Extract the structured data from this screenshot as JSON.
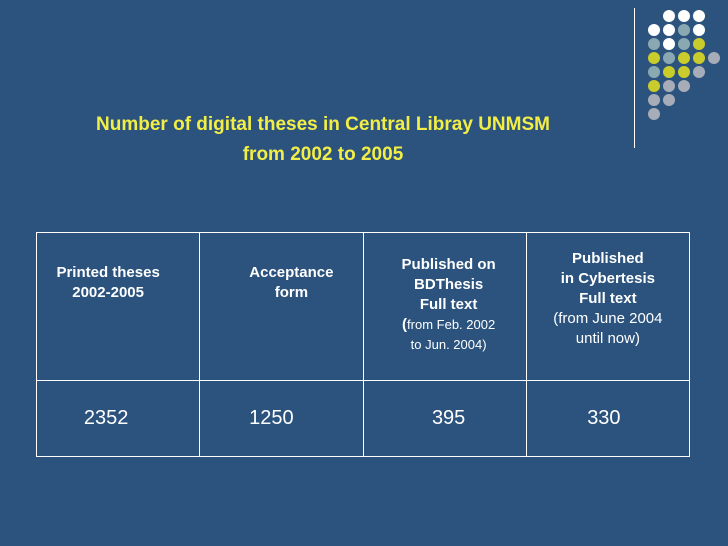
{
  "slide": {
    "title_line1": "Number of digital theses in Central Libray UNMSM",
    "title_line2": "from 2002 to 2005"
  },
  "decor": {
    "dot_colors": [
      "#ffffff",
      "#8aa8b2",
      "#c9cc2a",
      "#a7adb8"
    ]
  },
  "table": {
    "headers": [
      {
        "line1": "Printed theses",
        "line2": "2002-2005"
      },
      {
        "line1": "Acceptance",
        "line2": "form"
      },
      {
        "line1": "Published on",
        "line2": "BDThesis",
        "line3": "Full text",
        "paren": "(",
        "line4a": "from Feb. 2002",
        "line4b": "to Jun. 2004)"
      },
      {
        "line1": "Published",
        "line2": "in Cybertesis",
        "line3": "Full text",
        "line4a": "(from June 2004",
        "line4b": "until now)"
      }
    ],
    "values": [
      "2352",
      "1250",
      "395",
      "330"
    ]
  }
}
